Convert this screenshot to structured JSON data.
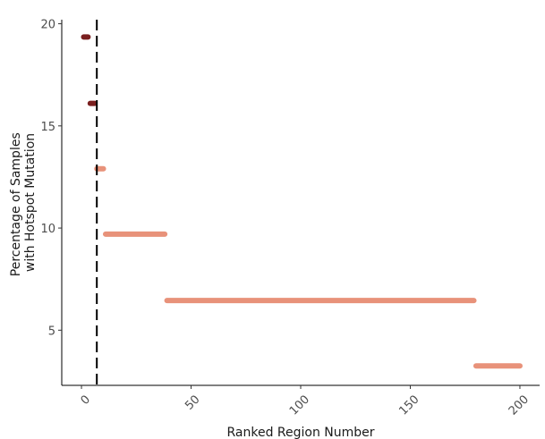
{
  "chart_data": {
    "type": "segment",
    "title": "",
    "xlabel": "Ranked Region Number",
    "ylabel_lines": [
      "Percentage of Samples",
      "with Hotspot Mutation"
    ],
    "xlim": [
      -9,
      209
    ],
    "ylim": [
      2.3,
      20.2
    ],
    "xticks": [
      0,
      50,
      100,
      150,
      200
    ],
    "yticks": [
      5,
      10,
      15,
      20
    ],
    "grid": false,
    "legend": "none",
    "cutoff_x": 7,
    "colors": {
      "dark": "#7a1f1f",
      "light": "#e8927a",
      "cutoff": "#000000"
    },
    "segments": [
      {
        "x_start": 1,
        "x_end": 3,
        "y": 19.35,
        "group": "dark"
      },
      {
        "x_start": 4,
        "x_end": 6,
        "y": 16.1,
        "group": "dark"
      },
      {
        "x_start": 7,
        "x_end": 10,
        "y": 12.9,
        "group": "light"
      },
      {
        "x_start": 11,
        "x_end": 38,
        "y": 9.7,
        "group": "light"
      },
      {
        "x_start": 39,
        "x_end": 179,
        "y": 6.45,
        "group": "light"
      },
      {
        "x_start": 180,
        "x_end": 200,
        "y": 3.25,
        "group": "light"
      }
    ]
  }
}
